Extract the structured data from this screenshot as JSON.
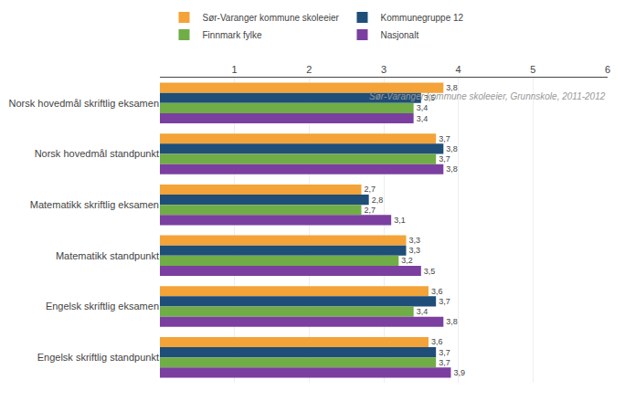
{
  "chart_data": {
    "type": "bar",
    "orientation": "horizontal",
    "categories": [
      "Norsk hovedmål skriftlig eksamen",
      "Norsk hovedmål standpunkt",
      "Matematikk skriftlig eksamen",
      "Matematikk standpunkt",
      "Engelsk skriftlig eksamen",
      "Engelsk skriftlig standpunkt"
    ],
    "series": [
      {
        "name": "Sør-Varanger kommune skoleeier",
        "color": "#F4A338",
        "values": [
          3.8,
          3.7,
          2.7,
          3.3,
          3.6,
          3.6
        ],
        "value_labels": [
          "3,8",
          "3,7",
          "2,7",
          "3,3",
          "3,6",
          "3,6"
        ]
      },
      {
        "name": "Kommunegruppe 12",
        "color": "#1F4E79",
        "values": [
          3.5,
          3.8,
          2.8,
          3.3,
          3.7,
          3.7
        ],
        "value_labels": [
          "3,5",
          "3,8",
          "2,8",
          "3,3",
          "3,7",
          "3,7"
        ]
      },
      {
        "name": "Finnmark fylke",
        "color": "#70AD47",
        "values": [
          3.4,
          3.7,
          2.7,
          3.2,
          3.4,
          3.7
        ],
        "value_labels": [
          "3,4",
          "3,7",
          "2,7",
          "3,2",
          "3,4",
          "3,7"
        ]
      },
      {
        "name": "Nasjonalt",
        "color": "#7B3FA0",
        "values": [
          3.4,
          3.8,
          3.1,
          3.5,
          3.8,
          3.9
        ],
        "value_labels": [
          "3,4",
          "3,8",
          "3,1",
          "3,5",
          "3,8",
          "3,9"
        ]
      }
    ],
    "xlim": [
      0,
      6
    ],
    "xticks": [
      1,
      2,
      3,
      4,
      5,
      6
    ],
    "grid": true,
    "legend": "top",
    "data_labels": true,
    "annotations": [
      "Sør-Varanger kommune skoleeier, Grunnskole, 2011-2012"
    ]
  }
}
